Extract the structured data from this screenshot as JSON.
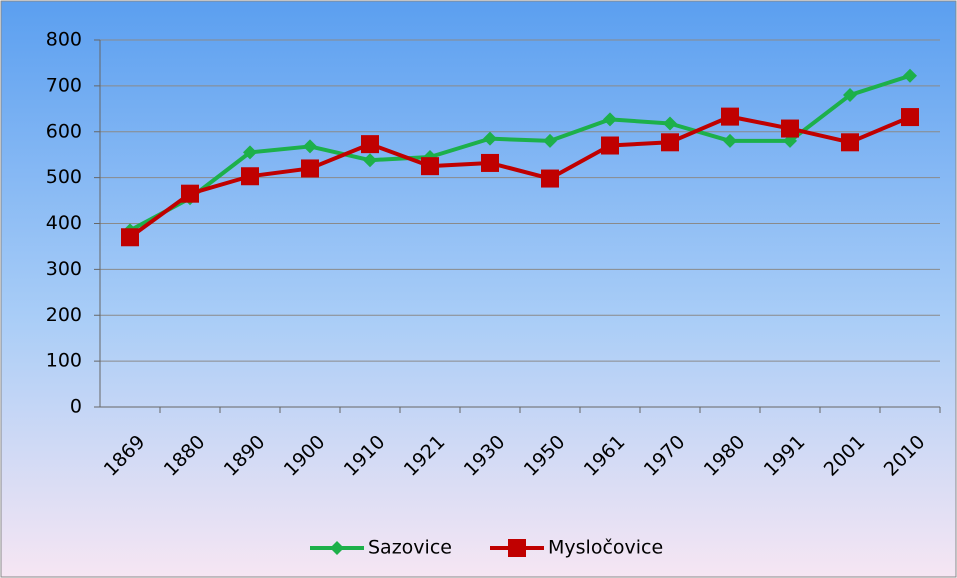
{
  "chart_data": {
    "type": "line",
    "categories": [
      "1869",
      "1880",
      "1890",
      "1900",
      "1910",
      "1921",
      "1930",
      "1950",
      "1961",
      "1970",
      "1980",
      "1991",
      "2001",
      "2010"
    ],
    "series": [
      {
        "name": "Sazovice",
        "color": "#1db04a",
        "values": [
          385,
          455,
          555,
          568,
          538,
          545,
          585,
          580,
          627,
          618,
          580,
          580,
          680,
          722
        ]
      },
      {
        "name": "Mysločovice",
        "color": "#c00000",
        "values": [
          370,
          465,
          503,
          520,
          573,
          525,
          532,
          498,
          570,
          577,
          633,
          607,
          577,
          632
        ]
      }
    ],
    "ylim": [
      0,
      800
    ],
    "yticks": [
      0,
      100,
      200,
      300,
      400,
      500,
      600,
      700,
      800
    ],
    "grid": true,
    "legend": "bottom"
  }
}
